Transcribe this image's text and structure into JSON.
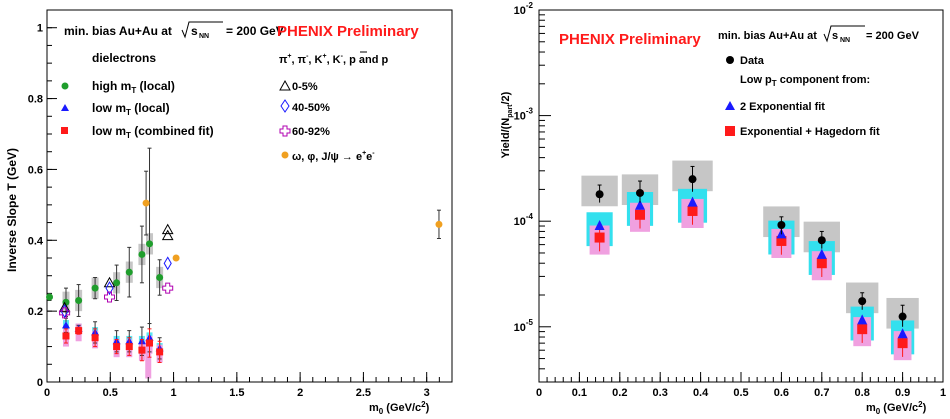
{
  "colors": {
    "red": "#ff1a1a",
    "green": "#1f9e2c",
    "blue": "#1a1aff",
    "magenta": "#b000b0",
    "orange": "#f0a020",
    "pink": "#f0a0e0",
    "cyan": "#33e0ee",
    "gray": "#c6c6c6"
  },
  "chart_data": [
    {
      "type": "scatter",
      "ylabel": "Inverse Slope T (GeV)",
      "xlabel": "m_0 (GeV/c^2)",
      "xlim": [
        0,
        3.2
      ],
      "ylim": [
        0,
        1.05
      ],
      "xticks": [
        "0",
        "0.5",
        "1",
        "1.5",
        "2",
        "2.5",
        "3"
      ],
      "yticks": [
        "0",
        "0.2",
        "0.4",
        "0.6",
        "0.8",
        "1"
      ],
      "annotations": {
        "collision": "min. bias Au+Au at",
        "energy": "= 200 GeV",
        "sqrt_label": "s_NN",
        "preliminary": "PHENIX Preliminary",
        "dielectrons_header": "dielectrons",
        "hadrons_header": "π+, π-, K+, K-, p and p̄"
      },
      "legend": {
        "high_mt": "high m_T (local)",
        "low_mt": "low m_T (local)",
        "low_mt_comb": "low m_T (combined fit)",
        "cent_0_5": "0-5%",
        "cent_40_50": "40-50%",
        "cent_60_92": "60-92%",
        "omega_phi_jpsi": "ω, φ, J/ψ → e+e-"
      },
      "series": [
        {
          "name": "high m_T (local)",
          "x": [
            0.02,
            0.15,
            0.25,
            0.38,
            0.55,
            0.65,
            0.75,
            0.81,
            0.89
          ],
          "y": [
            0.24,
            0.225,
            0.23,
            0.265,
            0.28,
            0.31,
            0.36,
            0.39,
            0.295
          ],
          "err": [
            0.01,
            0.04,
            0.045,
            0.03,
            0.05,
            0.07,
            0.08,
            0.27,
            0.05
          ]
        },
        {
          "name": "low m_T (local)",
          "x": [
            0.15,
            0.25,
            0.38,
            0.55,
            0.65,
            0.75,
            0.81,
            0.89
          ],
          "y": [
            0.16,
            0.15,
            0.14,
            0.115,
            0.115,
            0.115,
            0.125,
            0.095
          ],
          "err": [
            0.02,
            0.01,
            0.03,
            0.03,
            0.03,
            0.04,
            0.04,
            0.03
          ]
        },
        {
          "name": "low m_T (combined fit)",
          "x": [
            0.15,
            0.25,
            0.38,
            0.55,
            0.65,
            0.75,
            0.81,
            0.89
          ],
          "y": [
            0.13,
            0.145,
            0.125,
            0.1,
            0.1,
            0.09,
            0.11,
            0.085
          ],
          "err": [
            0.02,
            0.01,
            0.025,
            0.02,
            0.025,
            0.03,
            0.04,
            0.03
          ]
        },
        {
          "name": "0-5%",
          "x": [
            0.139,
            0.494,
            0.938
          ],
          "y": [
            0.21,
            0.28,
            0.43
          ],
          "err": [
            0,
            0,
            0
          ]
        },
        {
          "name": "40-50%",
          "x": [
            0.139,
            0.494,
            0.938
          ],
          "y": [
            0.2,
            0.265,
            0.335
          ],
          "err": [
            0,
            0,
            0
          ]
        },
        {
          "name": "60-92%",
          "x": [
            0.139,
            0.494,
            0.938
          ],
          "y": [
            0.195,
            0.24,
            0.265
          ],
          "err": [
            0,
            0,
            0
          ]
        },
        {
          "name": "ω, φ, J/ψ → e+e-",
          "x": [
            0.783,
            1.02,
            3.097
          ],
          "y": [
            0.505,
            0.35,
            0.445
          ],
          "err": [
            0.09,
            0,
            0.04
          ]
        }
      ]
    },
    {
      "type": "scatter",
      "ylabel": "Yield/(N_part/2)",
      "xlabel": "m_0 (GeV/c^2)",
      "xlim": [
        0,
        1.0
      ],
      "ylog": true,
      "ylim": [
        3e-06,
        0.01
      ],
      "xticks": [
        "0",
        "0.1",
        "0.2",
        "0.3",
        "0.4",
        "0.5",
        "0.6",
        "0.7",
        "0.8",
        "0.9",
        "1"
      ],
      "ytick_labels": [
        "10^-5",
        "10^-4",
        "10^-3",
        "10^-2"
      ],
      "annotations": {
        "preliminary": "PHENIX Preliminary",
        "collision": "min. bias Au+Au at",
        "energy": "= 200 GeV",
        "sqrt_label": "s_NN"
      },
      "legend": {
        "data": "Data",
        "lowpt_header": "Low p_T component from:",
        "two_exp": "2 Exponential fit",
        "exp_hag": "Exponential + Hagedorn fit"
      },
      "series": [
        {
          "name": "Data",
          "x": [
            0.15,
            0.25,
            0.38,
            0.6,
            0.7,
            0.8,
            0.9
          ],
          "y": [
            0.00018,
            0.000185,
            0.00025,
            9.2e-05,
            6.6e-05,
            1.75e-05,
            1.25e-05
          ],
          "err_lo": [
            0.00015,
            0.00015,
            0.00019,
            7.5e-05,
            5.5e-05,
            1.45e-05,
            1e-05
          ],
          "err_hi": [
            0.00022,
            0.00024,
            0.00033,
            0.00011,
            8e-05,
            2.1e-05,
            1.6e-05
          ]
        },
        {
          "name": "2 Exponential fit",
          "x": [
            0.15,
            0.25,
            0.38,
            0.6,
            0.7,
            0.8,
            0.9
          ],
          "y": [
            9e-05,
            0.00014,
            0.00015,
            7.5e-05,
            4.8e-05,
            1.15e-05,
            8.5e-06
          ]
        },
        {
          "name": "Exponential + Hagedorn fit",
          "x": [
            0.15,
            0.25,
            0.38,
            0.6,
            0.7,
            0.8,
            0.9
          ],
          "y": [
            7e-05,
            0.000115,
            0.000125,
            6.5e-05,
            4e-05,
            9.5e-06,
            7e-06
          ]
        }
      ]
    }
  ]
}
